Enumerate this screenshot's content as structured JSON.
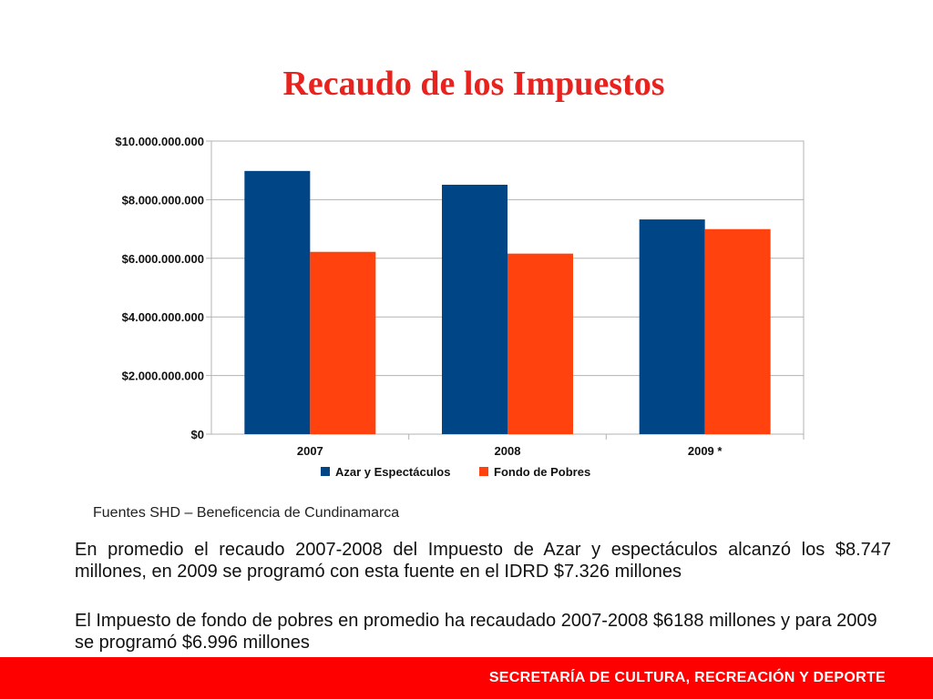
{
  "slide": {
    "title": "Recaudo de los Impuestos",
    "source": "Fuentes SHD – Beneficencia de Cundinamarca",
    "paragraph1": "En promedio el recaudo 2007-2008 del Impuesto de Azar y espectáculos alcanzó los $8.747 millones, en 2009 se programó con esta fuente en el IDRD $7.326 millones",
    "paragraph2": "El Impuesto de fondo de pobres en promedio ha recaudado 2007-2008 $6188 millones y para 2009 se programó $6.996 millones",
    "footer": "SECRETARÍA DE CULTURA, RECREACIÓN Y DEPORTE"
  },
  "chart_data": {
    "type": "bar",
    "categories": [
      "2007",
      "2008",
      "2009 *"
    ],
    "series": [
      {
        "name": "Azar y Espectáculos",
        "color": "#004586",
        "values": [
          8980000000,
          8510000000,
          7326000000
        ]
      },
      {
        "name": "Fondo de Pobres",
        "color": "#ff420e",
        "values": [
          6220000000,
          6160000000,
          6996000000
        ]
      }
    ],
    "ylim": [
      0,
      10000000000
    ],
    "yticks": [
      0,
      2000000000,
      4000000000,
      6000000000,
      8000000000,
      10000000000
    ],
    "ytick_labels": [
      "$0",
      "$2.000.000.000",
      "$4.000.000.000",
      "$6.000.000.000",
      "$8.000.000.000",
      "$10.000.000.000"
    ],
    "grid": true,
    "legend": "bottom-center"
  }
}
